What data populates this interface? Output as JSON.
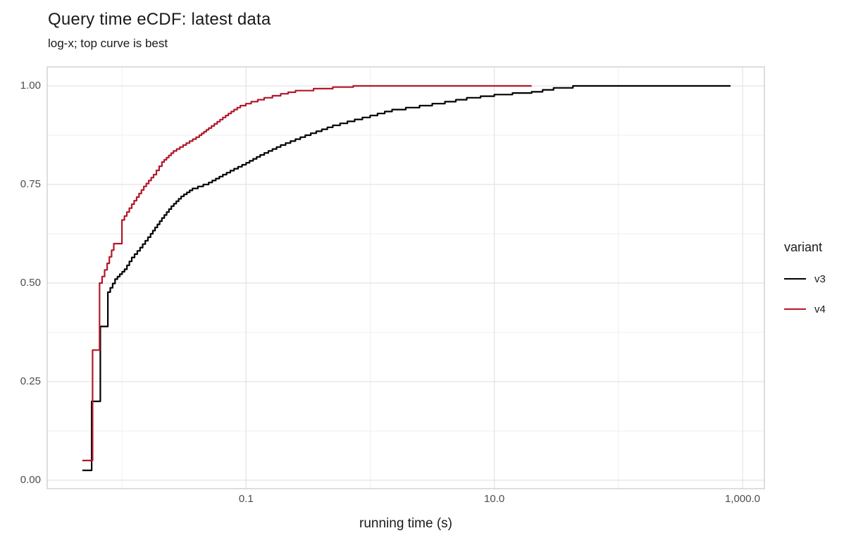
{
  "title": "Query time eCDF: latest data",
  "subtitle": "log-x; top curve is best",
  "chart_data": {
    "type": "line",
    "subtype": "ecdf-step",
    "title": "Query time eCDF: latest data",
    "subtitle": "log-x; top curve is best",
    "xlabel": "running time (s)",
    "ylabel": "",
    "x_scale": "log10",
    "xlim": [
      0.0025,
      1500
    ],
    "ylim": [
      0,
      1
    ],
    "grid": true,
    "x_ticks": [
      {
        "value": 0.1,
        "label": "0.1"
      },
      {
        "value": 10,
        "label": "10.0"
      },
      {
        "value": 1000,
        "label": "1,000.0"
      }
    ],
    "x_minor": [
      0.01,
      1,
      100
    ],
    "y_ticks": [
      {
        "value": 0,
        "label": "0.00"
      },
      {
        "value": 0.25,
        "label": "0.25"
      },
      {
        "value": 0.5,
        "label": "0.50"
      },
      {
        "value": 0.75,
        "label": "0.75"
      },
      {
        "value": 1,
        "label": "1.00"
      }
    ],
    "y_minor": [
      0.125,
      0.375,
      0.625,
      0.875
    ],
    "legend": {
      "title": "variant",
      "position": "right",
      "entries": [
        {
          "label": "v3",
          "color": "#000000"
        },
        {
          "label": "v4",
          "color": "#B2182B"
        }
      ]
    },
    "series": [
      {
        "name": "v3",
        "color": "#000000",
        "points": [
          [
            0.0048,
            0.025
          ],
          [
            0.0057,
            0.2
          ],
          [
            0.0067,
            0.39
          ],
          [
            0.0077,
            0.477
          ],
          [
            0.0088,
            0.51
          ],
          [
            0.0105,
            0.535
          ],
          [
            0.012,
            0.565
          ],
          [
            0.014,
            0.59
          ],
          [
            0.017,
            0.625
          ],
          [
            0.021,
            0.665
          ],
          [
            0.025,
            0.695
          ],
          [
            0.03,
            0.72
          ],
          [
            0.037,
            0.74
          ],
          [
            0.05,
            0.755
          ],
          [
            0.065,
            0.775
          ],
          [
            0.08,
            0.79
          ],
          [
            0.1,
            0.805
          ],
          [
            0.13,
            0.825
          ],
          [
            0.19,
            0.85
          ],
          [
            0.3,
            0.875
          ],
          [
            0.5,
            0.9
          ],
          [
            0.75,
            0.915
          ],
          [
            1.0,
            0.925
          ],
          [
            1.5,
            0.94
          ],
          [
            2.5,
            0.95
          ],
          [
            4.0,
            0.96
          ],
          [
            6.0,
            0.97
          ],
          [
            10,
            0.978
          ],
          [
            14,
            0.982
          ],
          [
            20,
            0.985
          ],
          [
            30,
            0.995
          ],
          [
            43,
            1.0
          ],
          [
            800,
            1.0
          ]
        ]
      },
      {
        "name": "v4",
        "color": "#B2182B",
        "points": [
          [
            0.0048,
            0.05
          ],
          [
            0.0058,
            0.33
          ],
          [
            0.0066,
            0.5
          ],
          [
            0.0076,
            0.55
          ],
          [
            0.0086,
            0.6
          ],
          [
            0.01,
            0.66
          ],
          [
            0.012,
            0.7
          ],
          [
            0.015,
            0.745
          ],
          [
            0.018,
            0.775
          ],
          [
            0.021,
            0.807
          ],
          [
            0.026,
            0.835
          ],
          [
            0.033,
            0.855
          ],
          [
            0.042,
            0.875
          ],
          [
            0.05,
            0.893
          ],
          [
            0.065,
            0.92
          ],
          [
            0.08,
            0.94
          ],
          [
            0.09,
            0.95
          ],
          [
            0.11,
            0.96
          ],
          [
            0.14,
            0.97
          ],
          [
            0.19,
            0.98
          ],
          [
            0.25,
            0.988
          ],
          [
            0.35,
            0.993
          ],
          [
            0.5,
            0.997
          ],
          [
            0.73,
            1.0
          ],
          [
            20,
            1.0
          ]
        ]
      }
    ],
    "style": {
      "panel_bg": "#ffffff",
      "panel_border": "#c9c9c9",
      "grid_major": "#e3e3e3",
      "grid_minor": "#efefef",
      "tick_label_color": "#4d4d4d",
      "text_color": "#1a1a1a"
    }
  }
}
